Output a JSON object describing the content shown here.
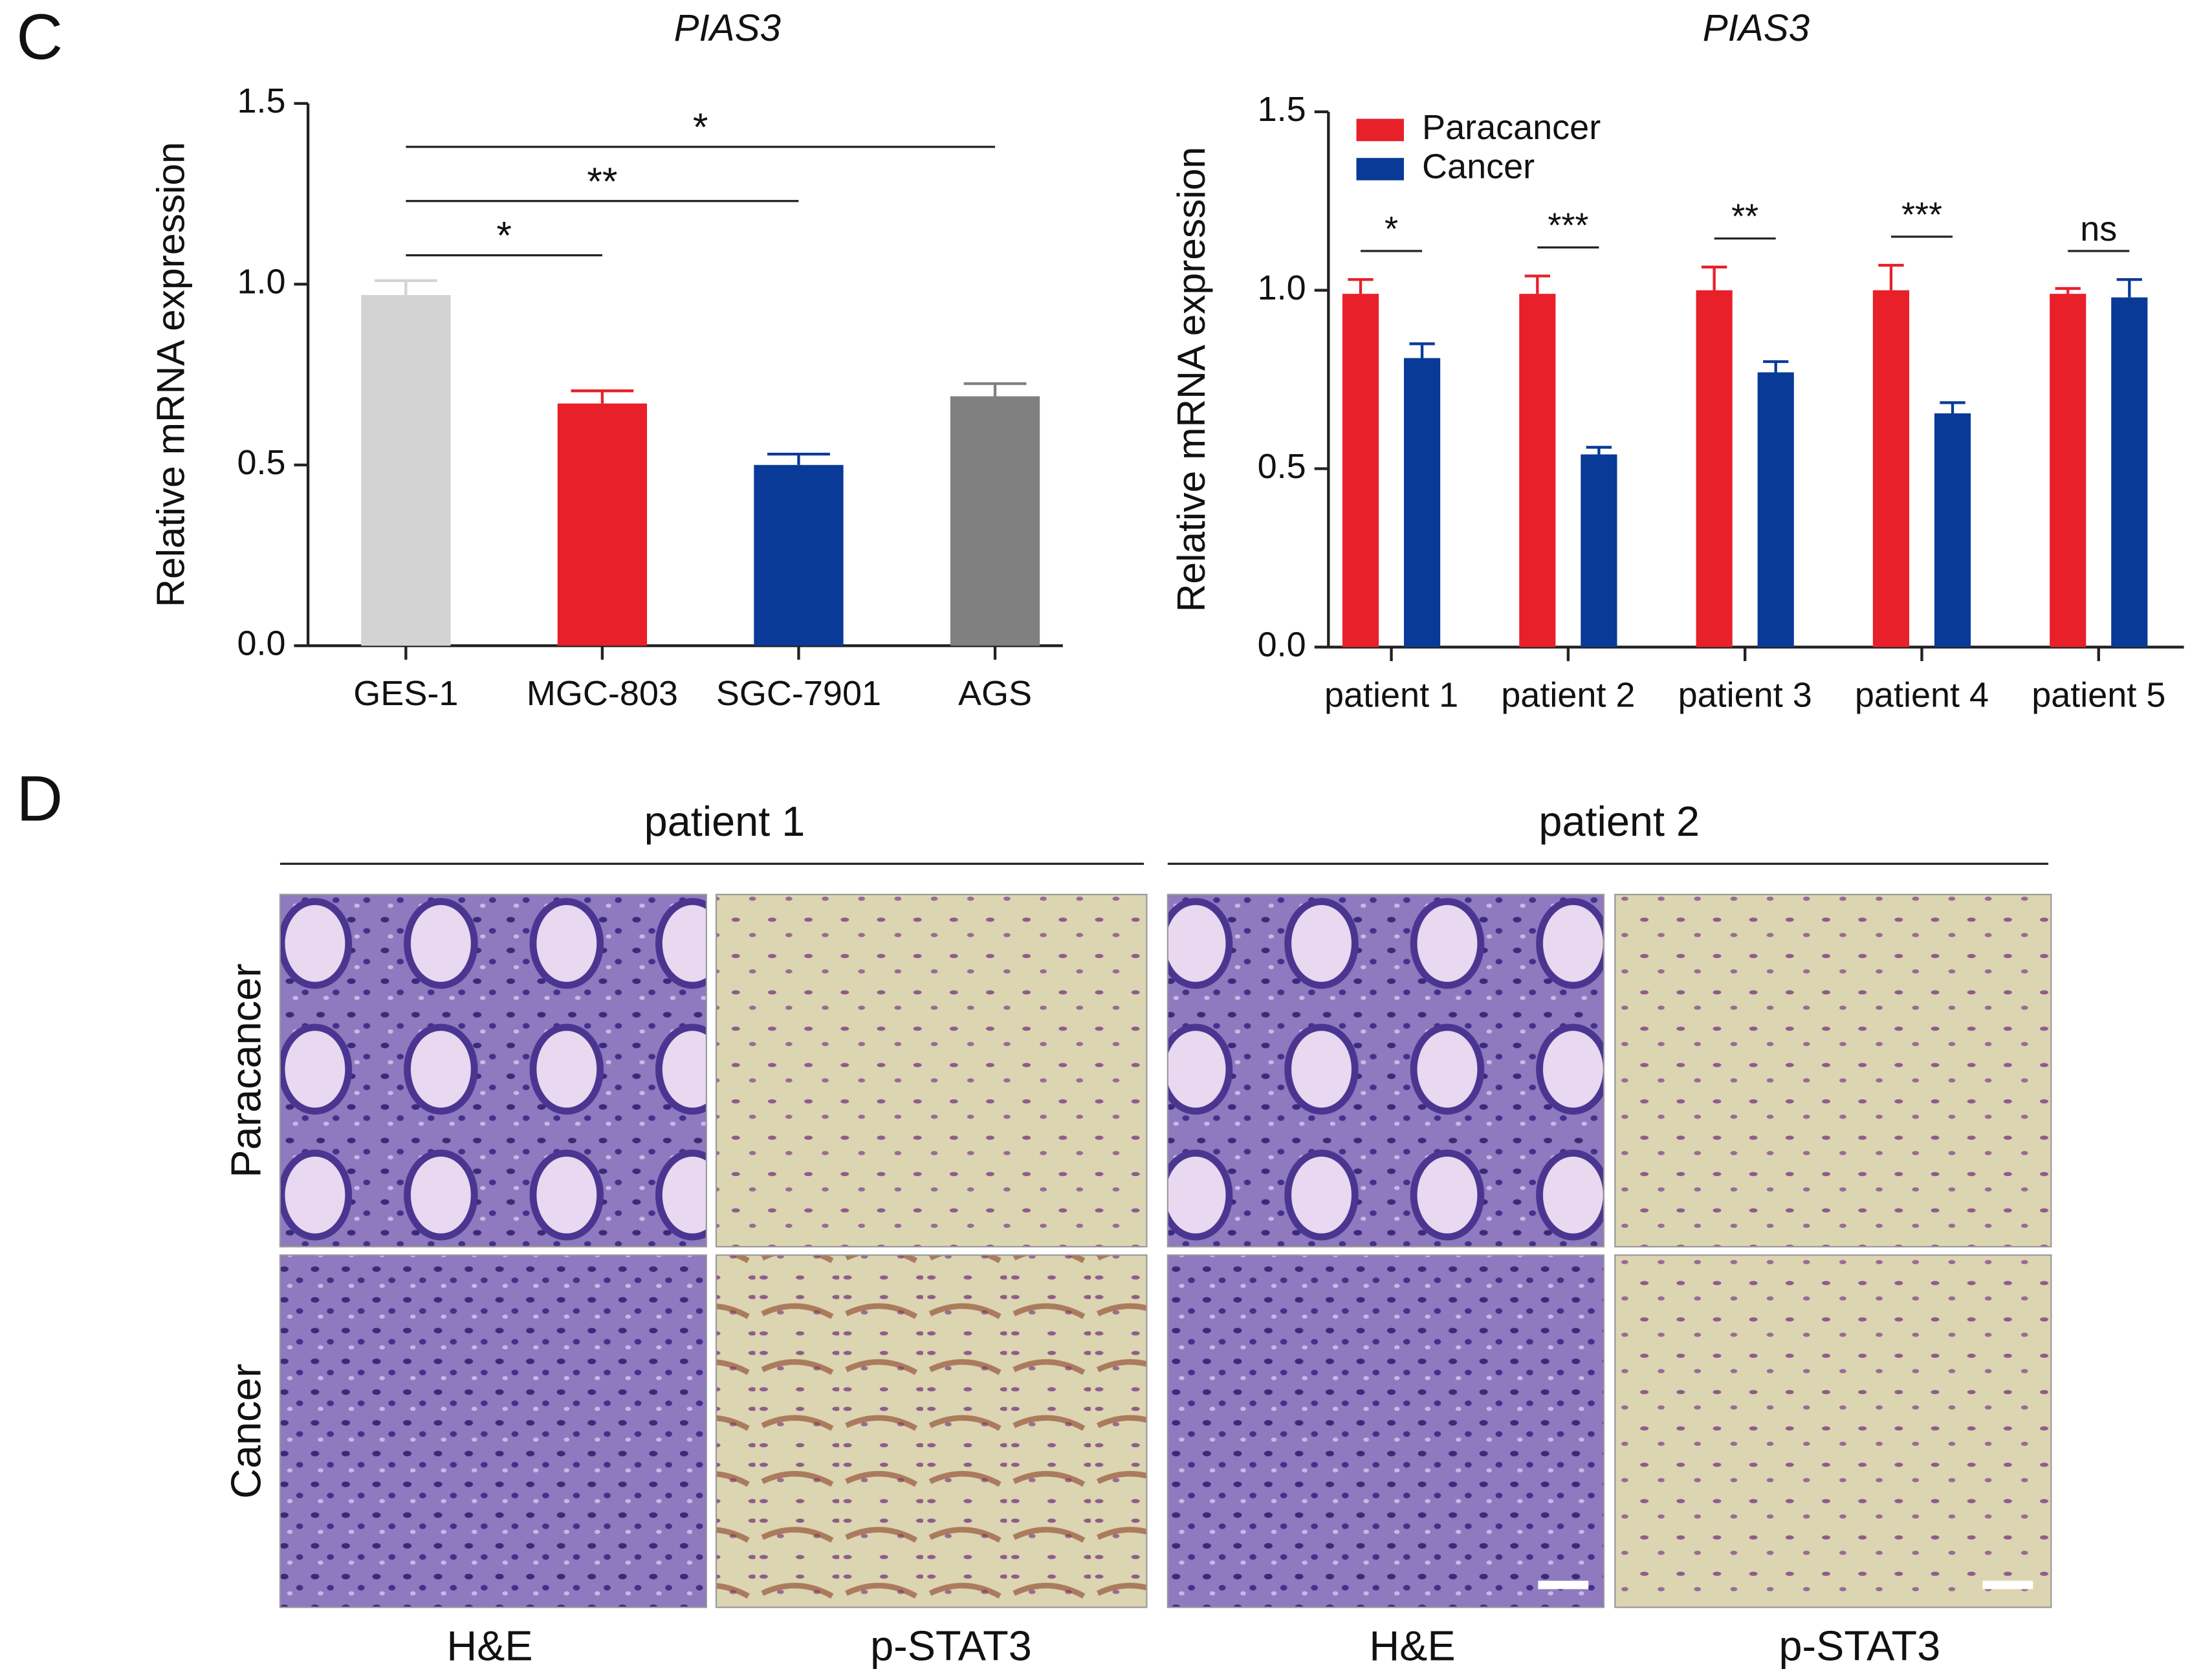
{
  "panel_labels": [
    "C",
    "D"
  ],
  "chart_data": [
    {
      "type": "bar",
      "title": "PIAS3",
      "y_label": "Relative mRNA expression",
      "categories": [
        "GES-1",
        "MGC-803",
        "SGC-7901",
        "AGS"
      ],
      "values": [
        0.97,
        0.67,
        0.5,
        0.69
      ],
      "errors": [
        0.04,
        0.035,
        0.03,
        0.035
      ],
      "colors": [
        "#d3d3d3",
        "#e8202a",
        "#0a3a97",
        "#808080"
      ],
      "ylim": [
        0,
        1.5
      ],
      "yticks": [
        {
          "value": 0,
          "label": "0.0"
        },
        0.5,
        {
          "value": 1,
          "label": "1.0"
        },
        1.5
      ],
      "annotations": [
        {
          "from": "GES-1",
          "to": "MGC-803",
          "label": "*"
        },
        {
          "from": "GES-1",
          "to": "SGC-7901",
          "label": "**"
        },
        {
          "from": "GES-1",
          "to": "AGS",
          "label": "*"
        }
      ]
    },
    {
      "type": "grouped_bar",
      "title": "PIAS3",
      "y_label": "Relative mRNA expression",
      "categories": [
        "patient 1",
        "patient 2",
        "patient 3",
        "patient 4",
        "patient 5"
      ],
      "series": [
        {
          "name": "Paracancer",
          "color": "#e8202a",
          "values": [
            0.99,
            0.99,
            1.0,
            1.0,
            0.99
          ],
          "errors": [
            0.04,
            0.05,
            0.065,
            0.07,
            0.015
          ]
        },
        {
          "name": "Cancer",
          "color": "#0a3a97",
          "values": [
            0.81,
            0.54,
            0.77,
            0.655,
            0.98
          ],
          "errors": [
            0.04,
            0.02,
            0.03,
            0.03,
            0.05
          ]
        }
      ],
      "significance": [
        "*",
        "***",
        "**",
        "***",
        "ns"
      ],
      "ylim": [
        0,
        1.5
      ],
      "yticks": [
        {
          "value": 0,
          "label": "0.0"
        },
        0.5,
        {
          "value": 1,
          "label": "1.0"
        },
        1.5
      ],
      "legend": "upper left"
    }
  ],
  "histology": {
    "groups": [
      "patient 1",
      "patient 2"
    ],
    "rows": [
      "Paracancer",
      "Cancer"
    ],
    "columns": [
      "H&E",
      "p-STAT3",
      "H&E",
      "p-STAT3"
    ]
  }
}
